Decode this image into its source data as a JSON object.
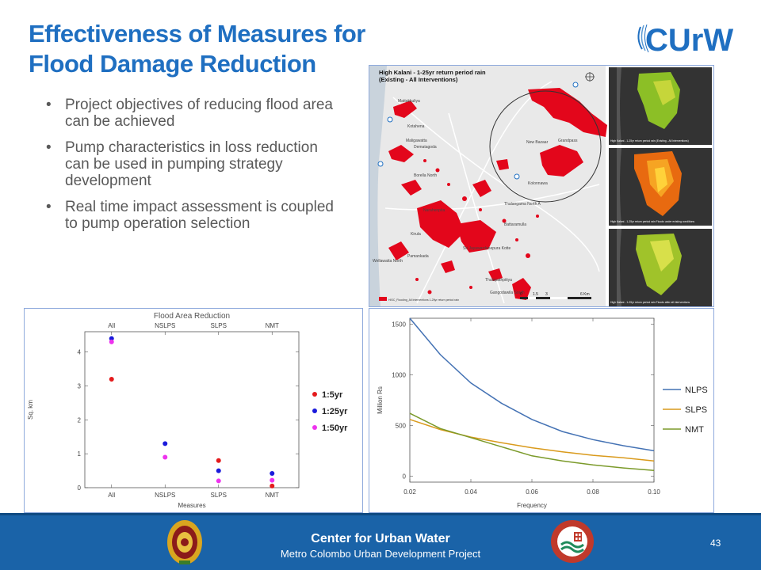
{
  "slide": {
    "title_line1": "Effectiveness of Measures for",
    "title_line2": "Flood Damage Reduction",
    "bullets": [
      "Project objectives of reducing flood area can be achieved",
      "Pump characteristics in loss reduction can be used in pumping strategy development",
      "Real time impact assessment is coupled to pump operation selection"
    ],
    "page_number": "43"
  },
  "logo": {
    "text": "CUrW",
    "color": "#1f6fc1"
  },
  "footer": {
    "title": "Center for Urban Water",
    "subtitle": "Metro Colombo Urban Development Project",
    "color": "#1a63a8"
  },
  "map": {
    "main_title_line1": "High Kalani - 1-25yr return period rain",
    "main_title_line2": "(Existing - All Interventions)",
    "scale_labels": [
      "0",
      "1.5",
      "3",
      "6 Km"
    ],
    "legend_label": "HISC_Flooding_All Interventions 1-25yr return period rain",
    "place_labels": [
      "Mattakkuliya",
      "Kotahena",
      "Maligawatta",
      "Dematagoda",
      "Borella North",
      "Narahenpita",
      "Kirula",
      "Wellawatta North",
      "Pamankada",
      "Kolonnawa",
      "Sri Jayawardenepura Kotte",
      "Battaramulla",
      "Thalangama North A",
      "Thalapathpitiya",
      "Gangodawila South",
      "New Bazaar",
      "Grandpass"
    ],
    "inset_captions": [
      "High Kalani - 1-25yr return period rain (Existing - All Interventions)",
      "High Kalani - 1-25yr return period rain Floods under existing conditions",
      "High Kalani - 1-25yr return period rain Floods after all interventions"
    ],
    "flood_color": "#e3061b"
  },
  "chart_data": [
    {
      "type": "scatter",
      "title": "Flood Area Reduction",
      "xlabel": "Measures",
      "ylabel": "Sq. km",
      "categories": [
        "All",
        "NSLPS",
        "SLPS",
        "NMT"
      ],
      "ylim": [
        0,
        4.6
      ],
      "yticks": [
        0,
        1,
        2,
        3,
        4
      ],
      "series": [
        {
          "name": "1:5yr",
          "color": "#e41a1c",
          "values": [
            3.2,
            null,
            0.8,
            0.05
          ]
        },
        {
          "name": "1:25yr",
          "color": "#1a1adb",
          "values": [
            4.4,
            1.3,
            0.5,
            0.42
          ]
        },
        {
          "name": "1:50yr",
          "color": "#ee33ee",
          "values": [
            4.3,
            0.9,
            0.2,
            0.22
          ]
        }
      ],
      "legend": "right"
    },
    {
      "type": "line",
      "xlabel": "Frequency",
      "ylabel": "Million Rs",
      "xlim": [
        0.02,
        0.1
      ],
      "ylim": [
        -60,
        1560
      ],
      "xticks": [
        "0.02",
        "0.04",
        "0.06",
        "0.08",
        "0.10"
      ],
      "yticks": [
        0,
        500,
        1000,
        1500
      ],
      "x": [
        0.02,
        0.03,
        0.04,
        0.05,
        0.06,
        0.07,
        0.08,
        0.09,
        0.1
      ],
      "series": [
        {
          "name": "NLPS",
          "color": "#4472b4",
          "values": [
            1560,
            1200,
            920,
            720,
            560,
            440,
            360,
            300,
            250
          ]
        },
        {
          "name": "SLPS",
          "color": "#d99a1c",
          "values": [
            560,
            460,
            385,
            330,
            280,
            240,
            205,
            180,
            150
          ]
        },
        {
          "name": "NMT",
          "color": "#7b9a2a",
          "values": [
            620,
            470,
            380,
            290,
            200,
            150,
            110,
            80,
            55
          ]
        }
      ],
      "legend": "right"
    }
  ]
}
